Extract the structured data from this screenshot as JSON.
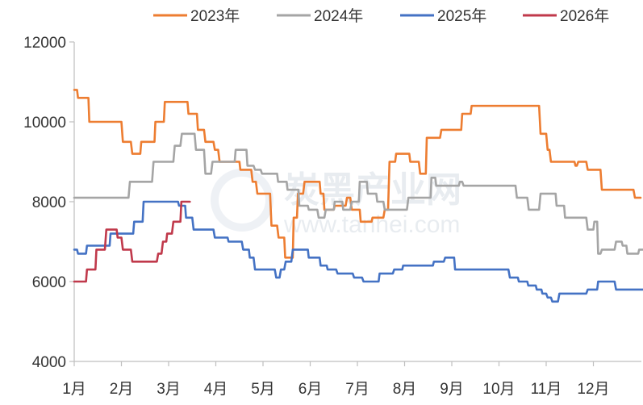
{
  "chart_data": {
    "type": "line",
    "title": "",
    "xlabel": "",
    "ylabel": "",
    "ylim": [
      4000,
      12000
    ],
    "yticks": [
      "4000",
      "6000",
      "8000",
      "10000",
      "12000"
    ],
    "xticks": [
      "1月",
      "2月",
      "3月",
      "4月",
      "5月",
      "6月",
      "7月",
      "8月",
      "9月",
      "10月",
      "11月",
      "12月"
    ],
    "x_range_months": [
      1,
      13.15
    ],
    "grid": false,
    "legend_position": "top",
    "watermark": {
      "main": "炭黑产业网",
      "sub": "www.tanhei.com"
    },
    "series": [
      {
        "name": "2023年",
        "color": "#ed7d31",
        "points": [
          [
            1.0,
            10800
          ],
          [
            1.06,
            10800
          ],
          [
            1.08,
            10600
          ],
          [
            1.3,
            10600
          ],
          [
            1.32,
            10000
          ],
          [
            2.0,
            10000
          ],
          [
            2.03,
            9500
          ],
          [
            2.2,
            9500
          ],
          [
            2.23,
            9200
          ],
          [
            2.4,
            9200
          ],
          [
            2.42,
            9500
          ],
          [
            2.7,
            9500
          ],
          [
            2.72,
            10000
          ],
          [
            2.9,
            10000
          ],
          [
            2.92,
            10500
          ],
          [
            3.4,
            10500
          ],
          [
            3.42,
            10200
          ],
          [
            3.6,
            10200
          ],
          [
            3.62,
            9800
          ],
          [
            3.75,
            9800
          ],
          [
            3.78,
            9500
          ],
          [
            3.95,
            9500
          ],
          [
            3.98,
            9300
          ],
          [
            4.05,
            9300
          ],
          [
            4.08,
            9000
          ],
          [
            4.5,
            9000
          ],
          [
            4.52,
            8800
          ],
          [
            4.75,
            8800
          ],
          [
            4.78,
            8500
          ],
          [
            4.85,
            8500
          ],
          [
            4.88,
            8200
          ],
          [
            5.15,
            8200
          ],
          [
            5.18,
            7400
          ],
          [
            5.3,
            7400
          ],
          [
            5.33,
            7100
          ],
          [
            5.45,
            7100
          ],
          [
            5.47,
            6600
          ],
          [
            5.63,
            6600
          ],
          [
            5.65,
            7600
          ],
          [
            5.72,
            7600
          ],
          [
            5.74,
            8200
          ],
          [
            5.85,
            8200
          ],
          [
            5.88,
            8500
          ],
          [
            6.2,
            8500
          ],
          [
            6.22,
            8200
          ],
          [
            6.28,
            8200
          ],
          [
            6.3,
            7800
          ],
          [
            6.5,
            7800
          ],
          [
            6.52,
            7900
          ],
          [
            6.75,
            7900
          ],
          [
            6.78,
            8100
          ],
          [
            6.85,
            8100
          ],
          [
            6.88,
            7800
          ],
          [
            7.05,
            7800
          ],
          [
            7.07,
            7500
          ],
          [
            7.3,
            7500
          ],
          [
            7.32,
            7600
          ],
          [
            7.55,
            7600
          ],
          [
            7.58,
            7800
          ],
          [
            7.65,
            7800
          ],
          [
            7.68,
            9000
          ],
          [
            7.8,
            9000
          ],
          [
            7.82,
            9200
          ],
          [
            8.1,
            9200
          ],
          [
            8.12,
            9000
          ],
          [
            8.3,
            9000
          ],
          [
            8.33,
            8700
          ],
          [
            8.45,
            8700
          ],
          [
            8.47,
            9600
          ],
          [
            8.75,
            9600
          ],
          [
            8.78,
            9800
          ],
          [
            9.2,
            9800
          ],
          [
            9.22,
            10200
          ],
          [
            9.4,
            10200
          ],
          [
            9.42,
            10400
          ],
          [
            10.85,
            10400
          ],
          [
            10.88,
            9700
          ],
          [
            11.0,
            9700
          ],
          [
            11.03,
            9300
          ],
          [
            11.07,
            9300
          ],
          [
            11.1,
            9000
          ],
          [
            11.6,
            9000
          ],
          [
            11.62,
            8900
          ],
          [
            11.65,
            8900
          ],
          [
            11.68,
            9000
          ],
          [
            11.85,
            9000
          ],
          [
            11.88,
            8800
          ],
          [
            12.15,
            8800
          ],
          [
            12.18,
            8300
          ],
          [
            12.85,
            8300
          ],
          [
            12.88,
            8100
          ],
          [
            13.0,
            8100
          ]
        ]
      },
      {
        "name": "2024年",
        "color": "#a5a5a5",
        "points": [
          [
            1.0,
            8100
          ],
          [
            2.15,
            8100
          ],
          [
            2.18,
            8500
          ],
          [
            2.65,
            8500
          ],
          [
            2.68,
            9000
          ],
          [
            3.1,
            9000
          ],
          [
            3.13,
            9400
          ],
          [
            3.25,
            9400
          ],
          [
            3.28,
            9700
          ],
          [
            3.55,
            9700
          ],
          [
            3.58,
            9300
          ],
          [
            3.75,
            9300
          ],
          [
            3.78,
            8700
          ],
          [
            3.9,
            8700
          ],
          [
            3.93,
            9000
          ],
          [
            4.4,
            9000
          ],
          [
            4.42,
            9300
          ],
          [
            4.65,
            9300
          ],
          [
            4.67,
            8900
          ],
          [
            4.8,
            8900
          ],
          [
            4.83,
            8800
          ],
          [
            4.95,
            8800
          ],
          [
            4.98,
            8700
          ],
          [
            5.3,
            8700
          ],
          [
            5.32,
            8500
          ],
          [
            5.5,
            8500
          ],
          [
            5.52,
            8300
          ],
          [
            5.75,
            8300
          ],
          [
            5.77,
            7900
          ],
          [
            5.95,
            7900
          ],
          [
            5.97,
            7800
          ],
          [
            6.15,
            7800
          ],
          [
            6.18,
            7600
          ],
          [
            6.3,
            7600
          ],
          [
            6.33,
            7800
          ],
          [
            6.5,
            7800
          ],
          [
            6.52,
            8000
          ],
          [
            6.68,
            8000
          ],
          [
            6.7,
            7800
          ],
          [
            6.85,
            7800
          ],
          [
            6.88,
            8000
          ],
          [
            7.03,
            8000
          ],
          [
            7.05,
            8500
          ],
          [
            7.2,
            8500
          ],
          [
            7.22,
            8200
          ],
          [
            7.4,
            8200
          ],
          [
            7.42,
            8000
          ],
          [
            7.55,
            8000
          ],
          [
            7.58,
            7800
          ],
          [
            8.05,
            7800
          ],
          [
            8.08,
            8100
          ],
          [
            8.55,
            8100
          ],
          [
            8.57,
            8600
          ],
          [
            8.65,
            8600
          ],
          [
            8.67,
            8400
          ],
          [
            9.15,
            8400
          ],
          [
            9.17,
            8500
          ],
          [
            9.22,
            8500
          ],
          [
            9.25,
            8400
          ],
          [
            10.35,
            8400
          ],
          [
            10.38,
            8100
          ],
          [
            10.6,
            8100
          ],
          [
            10.63,
            7800
          ],
          [
            10.85,
            7800
          ],
          [
            10.88,
            8200
          ],
          [
            11.2,
            8200
          ],
          [
            11.22,
            7900
          ],
          [
            11.38,
            7900
          ],
          [
            11.4,
            7600
          ],
          [
            11.85,
            7600
          ],
          [
            11.88,
            7300
          ],
          [
            12.0,
            7300
          ],
          [
            12.02,
            7500
          ],
          [
            12.08,
            7500
          ],
          [
            12.1,
            6700
          ],
          [
            12.15,
            6700
          ],
          [
            12.18,
            6800
          ],
          [
            12.45,
            6800
          ],
          [
            12.48,
            7000
          ],
          [
            12.6,
            7000
          ],
          [
            12.62,
            6900
          ],
          [
            12.7,
            6900
          ],
          [
            12.72,
            6700
          ],
          [
            12.95,
            6700
          ],
          [
            12.97,
            6800
          ],
          [
            13.15,
            6800
          ]
        ]
      },
      {
        "name": "2025年",
        "color": "#4472c4",
        "points": [
          [
            1.0,
            6800
          ],
          [
            1.06,
            6800
          ],
          [
            1.08,
            6700
          ],
          [
            1.25,
            6700
          ],
          [
            1.27,
            6900
          ],
          [
            1.75,
            6900
          ],
          [
            1.77,
            7200
          ],
          [
            2.25,
            7200
          ],
          [
            2.27,
            7500
          ],
          [
            2.45,
            7500
          ],
          [
            2.47,
            8000
          ],
          [
            3.2,
            8000
          ],
          [
            3.22,
            7900
          ],
          [
            3.35,
            7900
          ],
          [
            3.37,
            7600
          ],
          [
            3.5,
            7600
          ],
          [
            3.53,
            7300
          ],
          [
            3.95,
            7300
          ],
          [
            3.98,
            7100
          ],
          [
            4.25,
            7100
          ],
          [
            4.27,
            7000
          ],
          [
            4.55,
            7000
          ],
          [
            4.58,
            6800
          ],
          [
            4.7,
            6800
          ],
          [
            4.72,
            6600
          ],
          [
            4.8,
            6600
          ],
          [
            4.83,
            6300
          ],
          [
            5.25,
            6300
          ],
          [
            5.28,
            6100
          ],
          [
            5.35,
            6100
          ],
          [
            5.38,
            6300
          ],
          [
            5.45,
            6300
          ],
          [
            5.48,
            6500
          ],
          [
            5.6,
            6500
          ],
          [
            5.63,
            6800
          ],
          [
            5.95,
            6800
          ],
          [
            5.97,
            6600
          ],
          [
            6.2,
            6600
          ],
          [
            6.22,
            6400
          ],
          [
            6.35,
            6400
          ],
          [
            6.37,
            6300
          ],
          [
            6.55,
            6300
          ],
          [
            6.58,
            6200
          ],
          [
            6.9,
            6200
          ],
          [
            6.93,
            6100
          ],
          [
            7.1,
            6100
          ],
          [
            7.13,
            6000
          ],
          [
            7.45,
            6000
          ],
          [
            7.47,
            6200
          ],
          [
            7.75,
            6200
          ],
          [
            7.78,
            6300
          ],
          [
            7.95,
            6300
          ],
          [
            7.97,
            6400
          ],
          [
            8.6,
            6400
          ],
          [
            8.62,
            6500
          ],
          [
            8.83,
            6500
          ],
          [
            8.86,
            6600
          ],
          [
            9.05,
            6600
          ],
          [
            9.07,
            6300
          ],
          [
            10.2,
            6300
          ],
          [
            10.23,
            6100
          ],
          [
            10.4,
            6100
          ],
          [
            10.42,
            6000
          ],
          [
            10.6,
            6000
          ],
          [
            10.62,
            5900
          ],
          [
            10.78,
            5900
          ],
          [
            10.8,
            5800
          ],
          [
            10.9,
            5800
          ],
          [
            10.92,
            5700
          ],
          [
            11.0,
            5700
          ],
          [
            11.03,
            5600
          ],
          [
            11.1,
            5600
          ],
          [
            11.13,
            5500
          ],
          [
            11.25,
            5500
          ],
          [
            11.28,
            5700
          ],
          [
            11.85,
            5700
          ],
          [
            11.88,
            5800
          ],
          [
            12.08,
            5800
          ],
          [
            12.1,
            6000
          ],
          [
            12.45,
            6000
          ],
          [
            12.48,
            5800
          ],
          [
            13.1,
            5800
          ],
          [
            13.15,
            6000
          ]
        ]
      },
      {
        "name": "2026年",
        "color": "#c0394b",
        "points": [
          [
            1.0,
            6000
          ],
          [
            1.25,
            6000
          ],
          [
            1.27,
            6300
          ],
          [
            1.45,
            6300
          ],
          [
            1.47,
            6800
          ],
          [
            1.65,
            6800
          ],
          [
            1.68,
            7300
          ],
          [
            1.9,
            7300
          ],
          [
            1.92,
            7100
          ],
          [
            2.0,
            7100
          ],
          [
            2.03,
            6800
          ],
          [
            2.2,
            6800
          ],
          [
            2.23,
            6500
          ],
          [
            2.75,
            6500
          ],
          [
            2.78,
            6700
          ],
          [
            2.85,
            6700
          ],
          [
            2.88,
            7000
          ],
          [
            2.95,
            7000
          ],
          [
            2.97,
            7200
          ],
          [
            3.07,
            7200
          ],
          [
            3.1,
            7500
          ],
          [
            3.25,
            7500
          ],
          [
            3.27,
            8000
          ],
          [
            3.45,
            8000
          ]
        ]
      }
    ]
  }
}
